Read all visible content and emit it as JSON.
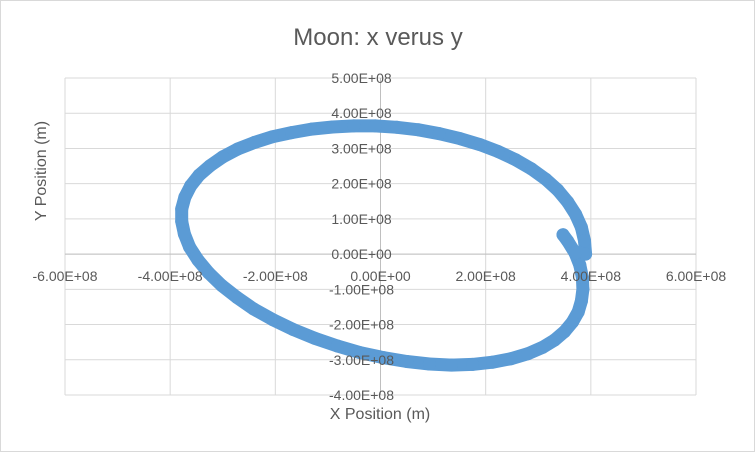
{
  "chart_data": {
    "type": "scatter",
    "title": "Moon: x verus y",
    "xlabel": "X Position (m)",
    "ylabel": "Y Position (m)",
    "xlim": [
      -600000000,
      600000000
    ],
    "ylim": [
      -400000000,
      500000000
    ],
    "x_ticks": [
      -600000000,
      -400000000,
      -200000000,
      0,
      200000000,
      400000000,
      600000000
    ],
    "x_tick_labels": [
      "-6.00E+08",
      "-4.00E+08",
      "-2.00E+08",
      "0.00E+00",
      "2.00E+08",
      "4.00E+08",
      "6.00E+08"
    ],
    "y_ticks": [
      -400000000,
      -300000000,
      -200000000,
      -100000000,
      0,
      100000000,
      200000000,
      300000000,
      400000000,
      500000000
    ],
    "y_tick_labels": [
      "-4.00E+08",
      "-3.00E+08",
      "-2.00E+08",
      "-1.00E+08",
      "0.00E+00",
      "1.00E+08",
      "2.00E+08",
      "3.00E+08",
      "4.00E+08",
      "5.00E+08"
    ],
    "grid": true,
    "legend": "none",
    "series_color": "#5b9bd5",
    "series": [
      {
        "x": [
          390000000,
          388000000,
          382000000,
          371000000,
          356000000,
          337000000,
          314000000,
          287000000,
          257000000,
          224000000,
          189000000,
          151000000,
          112000000,
          72000000,
          31000000,
          -10000000,
          -51000000,
          -91000000,
          -131000000,
          -169000000,
          -206000000,
          -240000000,
          -272000000,
          -300000000,
          -324000000,
          -345000000,
          -361000000,
          -372000000,
          -378000000,
          -378000000,
          -373000000,
          -363000000,
          -347000000,
          -327000000,
          -302000000,
          -273000000,
          -241000000,
          -205000000,
          -166000000,
          -125000000,
          -82000000,
          -38000000,
          6000000,
          50000000,
          93000000,
          135000000,
          175000000,
          213000000,
          248000000,
          280000000,
          308000000,
          331000000,
          350000000,
          365000000,
          376000000,
          382000000,
          385000000,
          384000000,
          379000000,
          370000000,
          356000000,
          347000000
        ],
        "y": [
          0,
          38000000,
          76000000,
          113000000,
          148000000,
          182000000,
          213000000,
          242000000,
          268000000,
          291000000,
          311000000,
          328000000,
          342000000,
          353000000,
          360000000,
          364000000,
          364000000,
          361000000,
          355000000,
          345000000,
          333000000,
          317000000,
          298000000,
          276000000,
          251000000,
          224000000,
          194000000,
          162000000,
          128000000,
          93000000,
          57000000,
          20000000,
          -17000000,
          -53000000,
          -89000000,
          -123000000,
          -156000000,
          -186000000,
          -214000000,
          -239000000,
          -261000000,
          -280000000,
          -294000000,
          -305000000,
          -312000000,
          -315000000,
          -313000000,
          -307000000,
          -297000000,
          -283000000,
          -265000000,
          -244000000,
          -220000000,
          -193000000,
          -164000000,
          -133000000,
          -100000000,
          -66000000,
          -31000000,
          3000000,
          37000000,
          55000000
        ]
      }
    ]
  }
}
